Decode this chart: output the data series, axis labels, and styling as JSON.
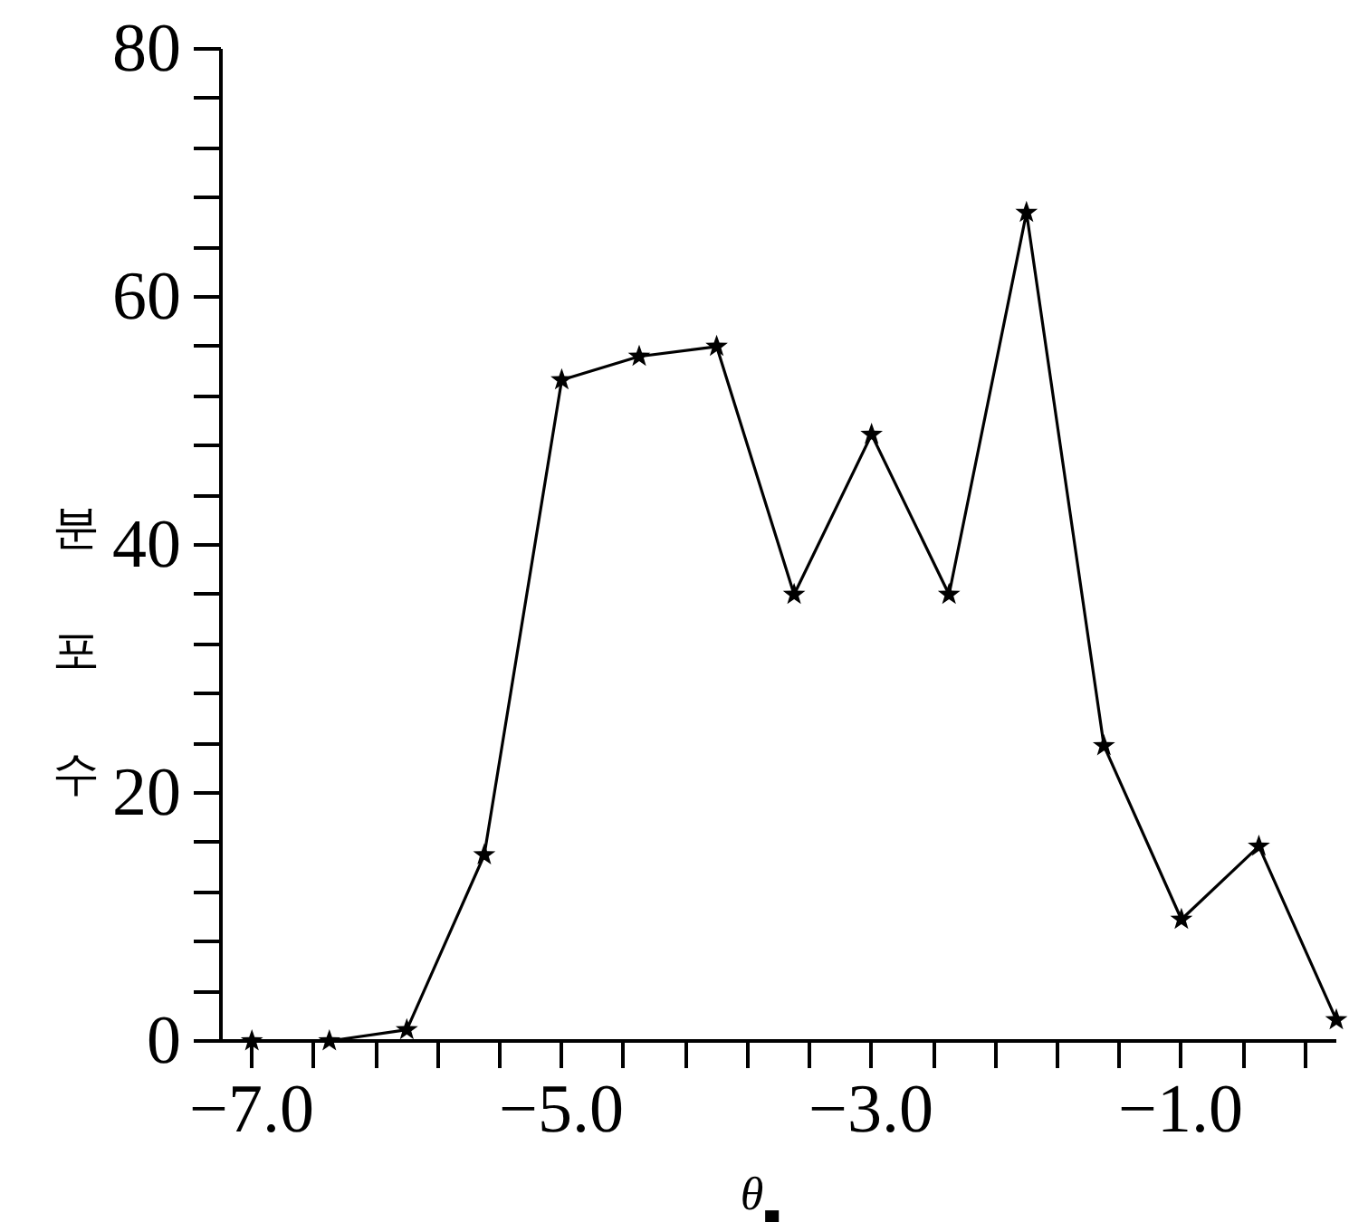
{
  "chart_data": {
    "type": "line",
    "xlabel": "θ$_{■}$",
    "ylabel": "분포수",
    "x": [
      -7.0,
      -6.5,
      -6.0,
      -5.5,
      -5.0,
      -4.5,
      -4.0,
      -3.5,
      -3.0,
      -2.5,
      -2.0,
      -1.5,
      -1.0,
      -0.5,
      0.0
    ],
    "series": [
      {
        "color": "#000000",
        "values": [
          0,
          0,
          0.9,
          15.0,
          53.3,
          55.2,
          56.0,
          36.0,
          48.9,
          36.0,
          66.8,
          23.8,
          9.8,
          15.7,
          1.7
        ]
      }
    ],
    "xlim": [
      -7.2,
      0.0
    ],
    "ylim": [
      0,
      80
    ],
    "xticks": [
      {
        "value": -7,
        "label": "−7.0"
      },
      {
        "value": -6.6,
        "label": null
      },
      {
        "value": -6.2,
        "label": null
      },
      {
        "value": -5.8,
        "label": null
      },
      {
        "value": -5.4,
        "label": null
      },
      {
        "value": -5,
        "label": "−5.0"
      },
      {
        "value": -4.6,
        "label": null
      },
      {
        "value": -4.2,
        "label": null
      },
      {
        "value": -3.8,
        "label": null
      },
      {
        "value": -3.4,
        "label": null
      },
      {
        "value": -3,
        "label": "−3.0"
      },
      {
        "value": -2.6,
        "label": null
      },
      {
        "value": -2.2,
        "label": null
      },
      {
        "value": -1.8,
        "label": null
      },
      {
        "value": -1.4,
        "label": null
      },
      {
        "value": -1,
        "label": "−1.0"
      },
      {
        "value": -0.6,
        "label": null
      },
      {
        "value": -0.2,
        "label": null
      }
    ],
    "yticks": [
      0,
      {
        "value": 4,
        "label": null
      },
      {
        "value": 8,
        "label": null
      },
      {
        "value": 12,
        "label": null
      },
      {
        "value": 16,
        "label": null
      },
      20,
      {
        "value": 24,
        "label": null
      },
      {
        "value": 28,
        "label": null
      },
      {
        "value": 32,
        "label": null
      },
      {
        "value": 36,
        "label": null
      },
      40,
      {
        "value": 44,
        "label": null
      },
      {
        "value": 48,
        "label": null
      },
      {
        "value": 52,
        "label": null
      },
      {
        "value": 56,
        "label": null
      },
      60,
      {
        "value": 64,
        "label": null
      },
      {
        "value": 68,
        "label": null
      },
      {
        "value": 72,
        "label": null
      },
      {
        "value": 76,
        "label": null
      },
      80
    ],
    "marker": "star",
    "line_style": "solid"
  }
}
